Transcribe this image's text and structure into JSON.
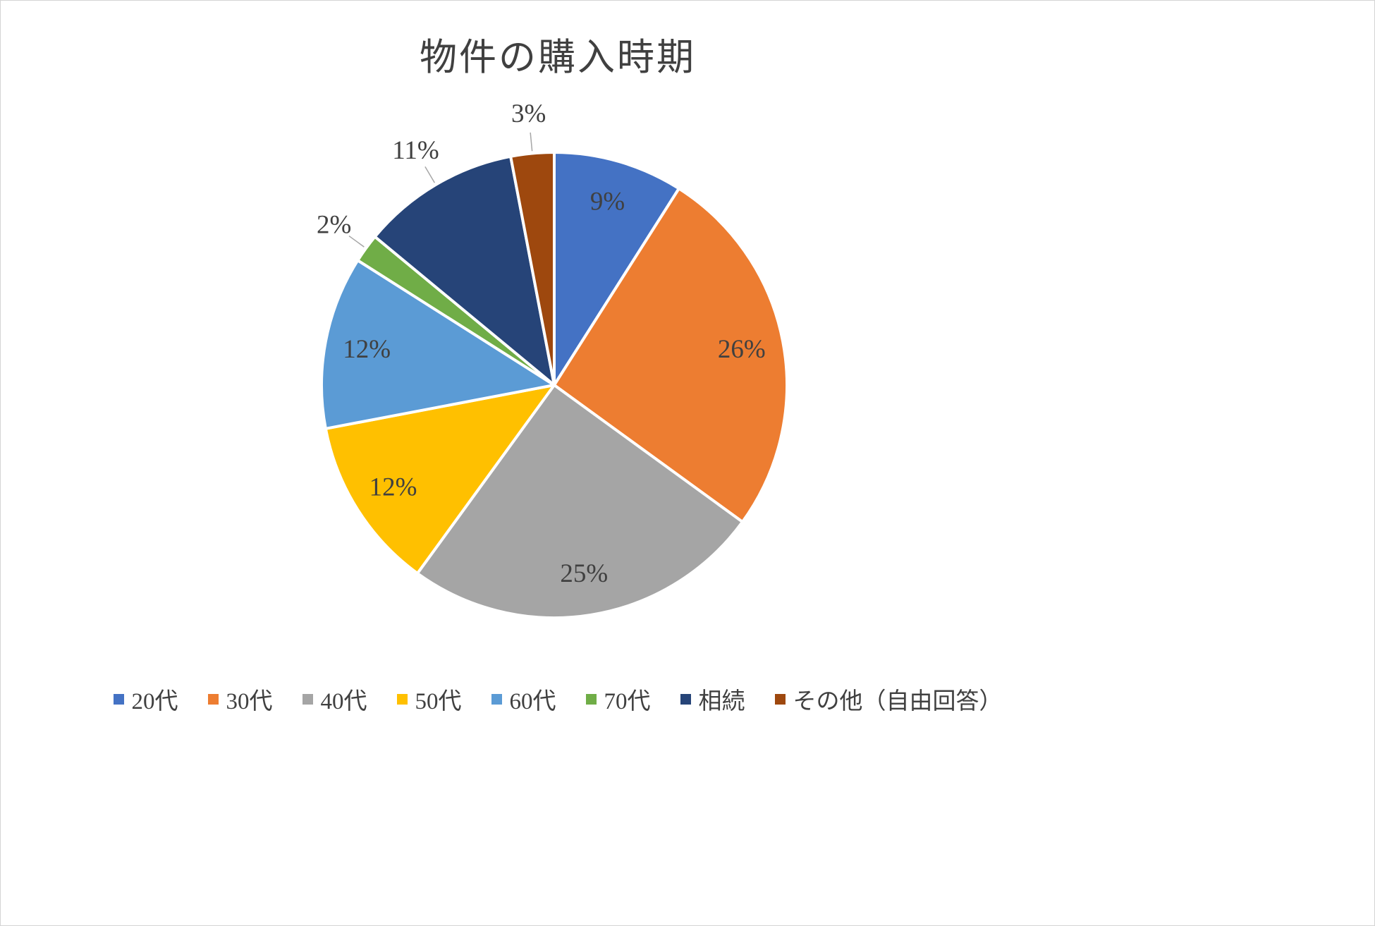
{
  "chart_data": {
    "type": "pie",
    "title": "物件の購入時期",
    "direction": "clockwise",
    "start_angle_deg": 0,
    "legend_position": "bottom",
    "label_color": "#404040",
    "leader_line_color": "#a6a6a6",
    "slice_border_color": "#ffffff",
    "series": [
      {
        "label": "20代",
        "value": 9,
        "data_label": "9%",
        "color": "#4472C4",
        "label_position": "inside"
      },
      {
        "label": "30代",
        "value": 26,
        "data_label": "26%",
        "color": "#ED7D31",
        "label_position": "inside"
      },
      {
        "label": "40代",
        "value": 25,
        "data_label": "25%",
        "color": "#A5A5A5",
        "label_position": "inside"
      },
      {
        "label": "50代",
        "value": 12,
        "data_label": "12%",
        "color": "#FFC000",
        "label_position": "inside"
      },
      {
        "label": "60代",
        "value": 12,
        "data_label": "12%",
        "color": "#5B9BD5",
        "label_position": "inside"
      },
      {
        "label": "70代",
        "value": 2,
        "data_label": "2%",
        "color": "#70AD47",
        "label_position": "outside"
      },
      {
        "label": "相続",
        "value": 11,
        "data_label": "11%",
        "color": "#264478",
        "label_position": "outside"
      },
      {
        "label": "その他（自由回答）",
        "value": 3,
        "data_label": "3%",
        "color": "#9E480E",
        "label_position": "outside"
      }
    ]
  }
}
